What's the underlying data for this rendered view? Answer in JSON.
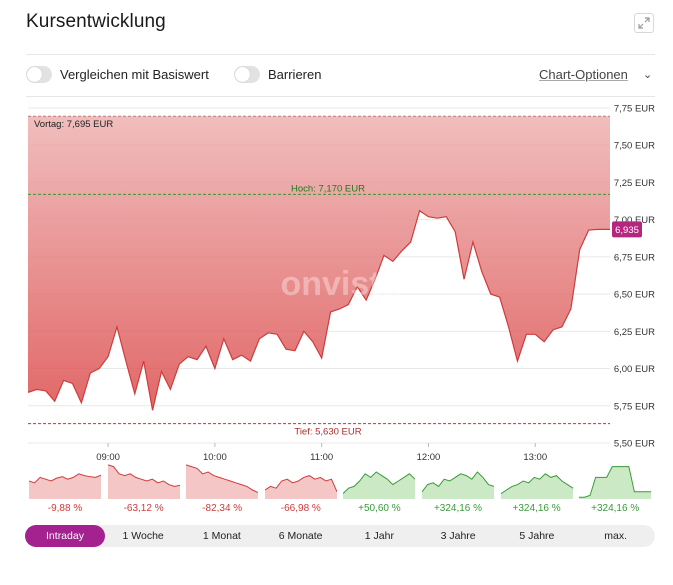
{
  "header": {
    "title": "Kursentwicklung",
    "expand_icon": "expand-icon"
  },
  "controls": {
    "compare_label": "Vergleichen mit Basiswert",
    "barriers_label": "Barrieren",
    "chart_options_label": "Chart-Optionen",
    "chevron_icon": "chevron-down-icon"
  },
  "chart_data": {
    "type": "area",
    "watermark": "onvista",
    "y_ticks": [
      "7,75 EUR",
      "7,50 EUR",
      "7,25 EUR",
      "7,00 EUR",
      "6,75 EUR",
      "6,50 EUR",
      "6,25 EUR",
      "6,00 EUR",
      "5,75 EUR",
      "5,50 EUR"
    ],
    "y_values": [
      7.75,
      7.5,
      7.25,
      7.0,
      6.75,
      6.5,
      6.25,
      6.0,
      5.75,
      5.5
    ],
    "ylim": [
      5.5,
      7.75
    ],
    "x_ticks": [
      "09:00",
      "10:00",
      "11:00",
      "12:00",
      "13:00"
    ],
    "x_tick_minutes": [
      540,
      600,
      660,
      720,
      780
    ],
    "xlim": [
      495,
      822
    ],
    "prev_close": {
      "label": "Vortag: 7,695 EUR",
      "value": 7.695
    },
    "high": {
      "label": "Hoch: 7,170 EUR",
      "value": 7.17
    },
    "low": {
      "label": "Tief: 5,630 EUR",
      "value": 5.63
    },
    "last": {
      "label": "6,935",
      "value": 6.935
    },
    "colors": {
      "fill": "#e57a7a",
      "line": "#cf3b3b",
      "high": "#2e9e2e",
      "low": "#c0392b",
      "last_badge": "#b5267f",
      "accent": "#a4228f"
    },
    "series": [
      {
        "x": [
          495,
          500,
          505,
          510,
          515,
          520,
          525,
          530,
          535,
          540,
          545,
          550,
          555,
          560,
          565,
          570,
          575,
          580,
          585,
          590,
          595,
          600,
          605,
          610,
          615,
          620,
          625,
          630,
          635,
          640,
          645,
          650,
          655,
          660,
          665,
          670,
          675,
          680,
          685,
          690,
          695,
          700,
          705,
          710,
          715,
          720,
          725,
          730,
          735,
          740,
          745,
          750,
          755,
          760,
          765,
          770,
          775,
          780,
          785,
          790,
          795,
          800,
          805,
          810,
          815,
          818,
          822
        ],
        "y": [
          5.84,
          5.86,
          5.85,
          5.78,
          5.92,
          5.9,
          5.77,
          5.97,
          6.0,
          6.08,
          6.28,
          6.05,
          5.83,
          6.05,
          5.72,
          5.98,
          5.86,
          6.03,
          6.08,
          6.06,
          6.15,
          6.0,
          6.2,
          6.06,
          6.09,
          6.05,
          6.2,
          6.24,
          6.23,
          6.13,
          6.12,
          6.25,
          6.18,
          6.07,
          6.38,
          6.4,
          6.43,
          6.55,
          6.46,
          6.6,
          6.76,
          6.72,
          6.79,
          6.85,
          7.06,
          7.02,
          7.01,
          7.02,
          6.92,
          6.6,
          6.85,
          6.65,
          6.5,
          6.48,
          6.28,
          6.05,
          6.23,
          6.23,
          6.18,
          6.26,
          6.28,
          6.4,
          6.8,
          6.93,
          6.935,
          6.935,
          6.935
        ]
      }
    ]
  },
  "sparklines": [
    {
      "label": "-9,88 %",
      "color": "#cf3b3b",
      "fill": "#f2b8b8",
      "values": [
        0.5,
        0.45,
        0.6,
        0.55,
        0.5,
        0.58,
        0.62,
        0.55,
        0.6,
        0.7,
        0.65,
        0.62,
        0.6,
        0.66
      ]
    },
    {
      "label": "-63,12 %",
      "color": "#cf3b3b",
      "fill": "#f2b8b8",
      "values": [
        0.95,
        0.9,
        0.7,
        0.65,
        0.7,
        0.6,
        0.55,
        0.5,
        0.55,
        0.45,
        0.5,
        0.4,
        0.35,
        0.38
      ]
    },
    {
      "label": "-82,34 %",
      "color": "#cf3b3b",
      "fill": "#f2b8b8",
      "values": [
        0.95,
        0.9,
        0.85,
        0.7,
        0.75,
        0.65,
        0.6,
        0.55,
        0.5,
        0.45,
        0.4,
        0.35,
        0.25,
        0.18
      ]
    },
    {
      "label": "-66,98 %",
      "color": "#cf3b3b",
      "fill": "#f2b8b8",
      "values": [
        0.25,
        0.35,
        0.3,
        0.5,
        0.55,
        0.45,
        0.5,
        0.6,
        0.65,
        0.55,
        0.6,
        0.5,
        0.55,
        0.2
      ]
    },
    {
      "label": "+50,60 %",
      "color": "#3a9a3a",
      "fill": "#bfe3b8",
      "values": [
        0.15,
        0.3,
        0.35,
        0.5,
        0.7,
        0.6,
        0.75,
        0.65,
        0.55,
        0.4,
        0.5,
        0.6,
        0.7,
        0.55
      ]
    },
    {
      "label": "+324,16 %",
      "color": "#3a9a3a",
      "fill": "#bfe3b8",
      "values": [
        0.2,
        0.4,
        0.45,
        0.35,
        0.55,
        0.5,
        0.6,
        0.7,
        0.65,
        0.55,
        0.75,
        0.6,
        0.4,
        0.35
      ]
    },
    {
      "label": "+324,16 %",
      "color": "#3a9a3a",
      "fill": "#bfe3b8",
      "values": [
        0.15,
        0.25,
        0.35,
        0.4,
        0.5,
        0.45,
        0.6,
        0.55,
        0.7,
        0.6,
        0.65,
        0.5,
        0.4,
        0.3
      ]
    },
    {
      "label": "+324,16 %",
      "color": "#3a9a3a",
      "fill": "#bfe3b8",
      "values": [
        0.05,
        0.05,
        0.1,
        0.6,
        0.6,
        0.6,
        0.9,
        0.9,
        0.9,
        0.9,
        0.2,
        0.2,
        0.2,
        0.2
      ]
    }
  ],
  "tabs": [
    {
      "label": "Intraday",
      "active": true
    },
    {
      "label": "1 Woche",
      "active": false
    },
    {
      "label": "1 Monat",
      "active": false
    },
    {
      "label": "6 Monate",
      "active": false
    },
    {
      "label": "1 Jahr",
      "active": false
    },
    {
      "label": "3 Jahre",
      "active": false
    },
    {
      "label": "5 Jahre",
      "active": false
    },
    {
      "label": "max.",
      "active": false
    }
  ]
}
